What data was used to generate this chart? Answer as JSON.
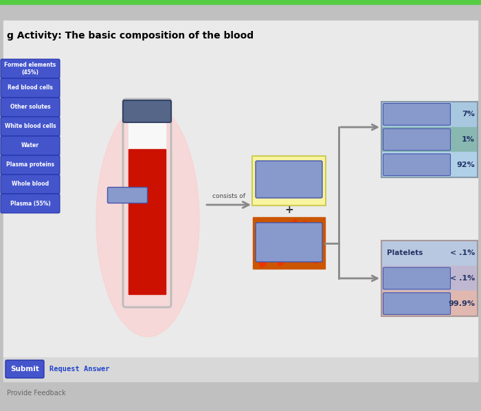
{
  "title": "g Activity: The basic composition of the blood",
  "title_fontsize": 10,
  "left_labels": [
    "Formed elements\n(45%)",
    "Red blood cells",
    "Other solutes",
    "White blood cells",
    "Water",
    "Plasma proteins",
    "Whole blood",
    "Plasma (55%)"
  ],
  "right_top_items": [
    {
      "pct": "7%",
      "row_color": "#a0c8e0"
    },
    {
      "pct": "1%",
      "row_color": "#80b8b0"
    },
    {
      "pct": "92%",
      "row_color": "#b8d8e8"
    }
  ],
  "right_bottom_items": [
    {
      "label": "Platelets",
      "pct": "< .1%",
      "row_color": "#c0d0e8"
    },
    {
      "label": "",
      "pct": "< .1%",
      "row_color": "#c8c0d8"
    },
    {
      "label": "",
      "pct": "99.9%",
      "row_color": "#e8c0b8"
    }
  ],
  "consists_of_label": "consists of",
  "plus_label": "+",
  "submit_label": "Submit",
  "request_label": "Request Answer",
  "btn_color": "#4455cc",
  "tube_red": "#cc1100",
  "tube_white": "#f8f8f8",
  "tube_cap_color": "#556688",
  "yellow_box_bg": "#f8f4a0",
  "blue_box_color": "#8899cc",
  "arrow_color": "#888888",
  "bg_gray": "#c0c0c0",
  "content_bg": "#e8e8e8",
  "glow_color": "#ffcccc"
}
